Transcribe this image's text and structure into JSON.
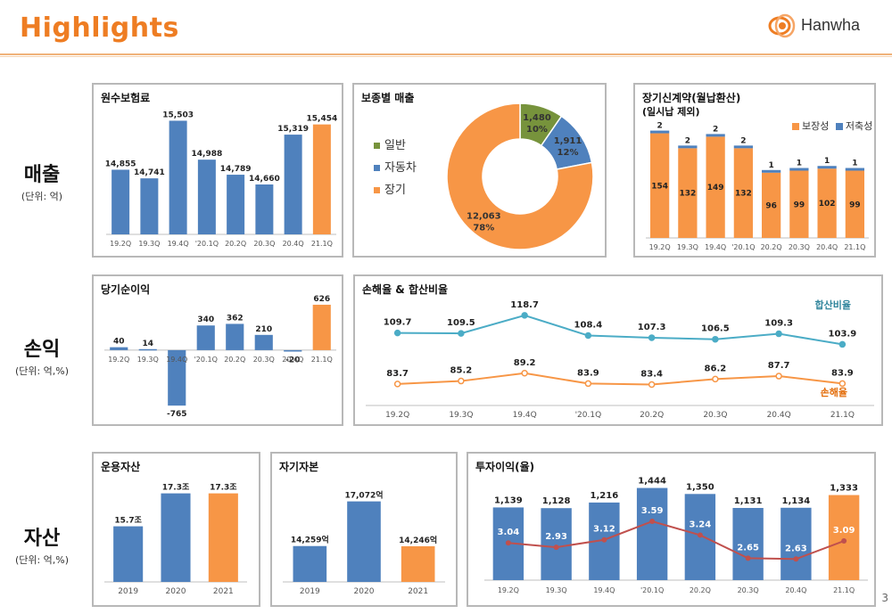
{
  "page": {
    "title": "Highlights",
    "logo_text": "Hanwha",
    "page_number": "3"
  },
  "colors": {
    "blue": "#4f81bd",
    "orange": "#f79646",
    "green": "#77933c",
    "teal": "#4bacc6",
    "red": "#c0504d",
    "accent": "#ee7d23"
  },
  "sections": [
    {
      "label": "매출",
      "unit": "(단위: 억)"
    },
    {
      "label": "손익",
      "unit": "(단위: 억,%)"
    },
    {
      "label": "자산",
      "unit": "(단위: 억,%)"
    }
  ],
  "chart_data": [
    {
      "id": "premium",
      "type": "bar",
      "title": "원수보험료",
      "categories": [
        "19.2Q",
        "19.3Q",
        "19.4Q",
        "'20.1Q",
        "20.2Q",
        "20.3Q",
        "20.4Q",
        "21.1Q"
      ],
      "values": [
        14855,
        14741,
        15503,
        14988,
        14789,
        14660,
        15319,
        15454
      ],
      "labels": [
        "14,855",
        "14,741",
        "15,503",
        "14,988",
        "14,789",
        "14,660",
        "15,319",
        "15,454"
      ],
      "ylim": [
        14000,
        15650
      ]
    },
    {
      "id": "sales_mix",
      "type": "pie",
      "title": "보종별 매출",
      "legend": [
        "일반",
        "자동차",
        "장기"
      ],
      "values": [
        1480,
        1911,
        12063
      ],
      "percents": [
        "10%",
        "12%",
        "78%"
      ],
      "labels": [
        "1,480",
        "1,911",
        "12,063"
      ]
    },
    {
      "id": "new_contracts",
      "type": "bar",
      "title": "장기신계약(월납환산)",
      "subtitle": "(일시납 제외)",
      "categories": [
        "19.2Q",
        "19.3Q",
        "19.4Q",
        "'20.1Q",
        "20.2Q",
        "20.3Q",
        "20.4Q",
        "21.1Q"
      ],
      "series": [
        {
          "name": "보장성",
          "values": [
            154,
            132,
            149,
            132,
            96,
            99,
            102,
            99
          ]
        },
        {
          "name": "저축성",
          "values": [
            2,
            2,
            2,
            2,
            1,
            1,
            1,
            1
          ]
        }
      ],
      "ylim": [
        0,
        160
      ]
    },
    {
      "id": "net_income",
      "type": "bar",
      "title": "당기순이익",
      "categories": [
        "19.2Q",
        "19.3Q",
        "19.4Q",
        "'20.1Q",
        "20.2Q",
        "20.3Q",
        "20.4Q",
        "21.1Q"
      ],
      "values": [
        40,
        14,
        -765,
        340,
        362,
        210,
        -20,
        626
      ],
      "labels": [
        "40",
        "14",
        "-765",
        "340",
        "362",
        "210",
        "-20",
        "626"
      ],
      "ylim": [
        -800,
        650
      ]
    },
    {
      "id": "ratios",
      "type": "line",
      "title": "손해율 & 합산비율",
      "categories": [
        "19.2Q",
        "19.3Q",
        "19.4Q",
        "'20.1Q",
        "20.2Q",
        "20.3Q",
        "20.4Q",
        "21.1Q"
      ],
      "series": [
        {
          "name": "합산비율",
          "values": [
            109.7,
            109.5,
            118.7,
            108.4,
            107.3,
            106.5,
            109.3,
            103.9
          ]
        },
        {
          "name": "손해율",
          "values": [
            83.7,
            85.2,
            89.2,
            83.9,
            83.4,
            86.2,
            87.7,
            83.9
          ]
        }
      ],
      "ylim": [
        75,
        125
      ]
    },
    {
      "id": "operating_assets",
      "type": "bar",
      "title": "운용자산",
      "categories": [
        "2019",
        "2020",
        "2021"
      ],
      "values": [
        15.7,
        17.3,
        17.3
      ],
      "labels": [
        "15.7조",
        "17.3조",
        "17.3조"
      ],
      "ylim": [
        13,
        17.5
      ]
    },
    {
      "id": "equity",
      "type": "bar",
      "title": "자기자본",
      "categories": [
        "2019",
        "2020",
        "2021"
      ],
      "values": [
        14259,
        17072,
        14246
      ],
      "labels": [
        "14,259억",
        "17,072억",
        "14,246억"
      ],
      "ylim": [
        12000,
        17500
      ]
    },
    {
      "id": "investment_income",
      "type": "bar",
      "title": "투자이익(율)",
      "categories": [
        "19.2Q",
        "19.3Q",
        "19.4Q",
        "'20.1Q",
        "20.2Q",
        "20.3Q",
        "20.4Q",
        "21.1Q"
      ],
      "values": [
        1139,
        1128,
        1216,
        1444,
        1350,
        1131,
        1134,
        1333
      ],
      "labels": [
        "1,139",
        "1,128",
        "1,216",
        "1,444",
        "1,350",
        "1,131",
        "1,134",
        "1,333"
      ],
      "rate": [
        3.04,
        2.93,
        3.12,
        3.59,
        3.24,
        2.65,
        2.63,
        3.09
      ],
      "rate_labels": [
        "3.04",
        "2.93",
        "3.12",
        "3.59",
        "3.24",
        "2.65",
        "2.63",
        "3.09"
      ],
      "ylim": [
        0,
        1480
      ]
    }
  ]
}
